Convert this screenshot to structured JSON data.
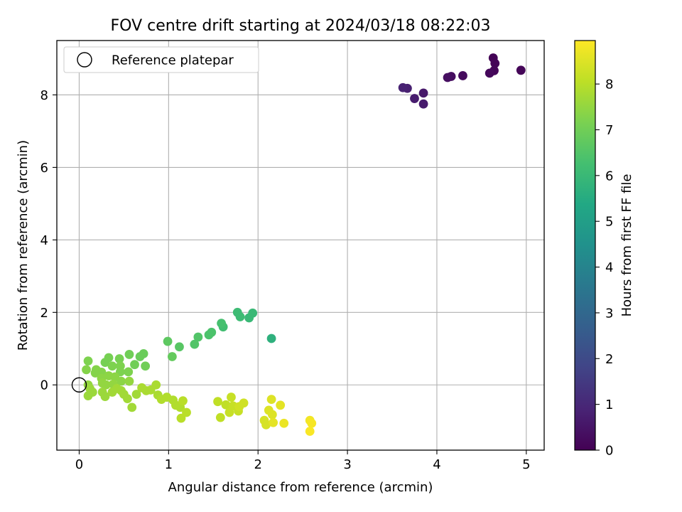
{
  "chart_data": {
    "type": "scatter",
    "title": "FOV centre drift starting at 2024/03/18 08:22:03",
    "xlabel": "Angular distance from reference (arcmin)",
    "ylabel": "Rotation from reference (arcmin)",
    "xlim": [
      -0.25,
      5.2
    ],
    "ylim": [
      -1.8,
      9.5
    ],
    "xticks": [
      0,
      1,
      2,
      3,
      4,
      5
    ],
    "yticks": [
      0,
      2,
      4,
      6,
      8
    ],
    "grid": true,
    "legend": {
      "location": "upper-left",
      "entries": [
        "Reference platepar"
      ]
    },
    "reference_point": {
      "x": 0,
      "y": 0,
      "label": "Reference platepar"
    },
    "colorbar": {
      "label": "Hours from first FF file",
      "colormap": "viridis",
      "range": [
        0,
        8.95
      ],
      "ticks": [
        0,
        1,
        2,
        3,
        4,
        5,
        6,
        7,
        8
      ]
    },
    "points": [
      {
        "x": 4.63,
        "y": 9.02,
        "t": 0.05
      },
      {
        "x": 4.65,
        "y": 8.87,
        "t": 0.08
      },
      {
        "x": 4.64,
        "y": 8.67,
        "t": 0.1
      },
      {
        "x": 4.94,
        "y": 8.68,
        "t": 0.12
      },
      {
        "x": 4.59,
        "y": 8.6,
        "t": 0.18
      },
      {
        "x": 4.29,
        "y": 8.53,
        "t": 0.25
      },
      {
        "x": 4.16,
        "y": 8.51,
        "t": 0.3
      },
      {
        "x": 4.12,
        "y": 8.48,
        "t": 0.35
      },
      {
        "x": 3.85,
        "y": 8.05,
        "t": 0.6
      },
      {
        "x": 3.85,
        "y": 7.75,
        "t": 0.65
      },
      {
        "x": 3.75,
        "y": 7.9,
        "t": 0.7
      },
      {
        "x": 3.67,
        "y": 8.18,
        "t": 0.8
      },
      {
        "x": 3.62,
        "y": 8.2,
        "t": 0.85
      },
      {
        "x": 2.15,
        "y": 1.28,
        "t": 5.7
      },
      {
        "x": 1.94,
        "y": 1.98,
        "t": 6.0
      },
      {
        "x": 1.9,
        "y": 1.85,
        "t": 6.0
      },
      {
        "x": 1.8,
        "y": 1.88,
        "t": 6.1
      },
      {
        "x": 1.77,
        "y": 2.0,
        "t": 6.1
      },
      {
        "x": 1.61,
        "y": 1.6,
        "t": 6.2
      },
      {
        "x": 1.59,
        "y": 1.7,
        "t": 6.3
      },
      {
        "x": 1.48,
        "y": 1.45,
        "t": 6.4
      },
      {
        "x": 1.45,
        "y": 1.38,
        "t": 6.4
      },
      {
        "x": 1.33,
        "y": 1.32,
        "t": 6.5
      },
      {
        "x": 1.29,
        "y": 1.12,
        "t": 6.5
      },
      {
        "x": 1.12,
        "y": 1.05,
        "t": 6.6
      },
      {
        "x": 0.99,
        "y": 1.2,
        "t": 6.7
      },
      {
        "x": 1.04,
        "y": 0.78,
        "t": 6.8
      },
      {
        "x": 0.72,
        "y": 0.86,
        "t": 6.9
      },
      {
        "x": 0.68,
        "y": 0.78,
        "t": 6.9
      },
      {
        "x": 0.56,
        "y": 0.84,
        "t": 7.0
      },
      {
        "x": 0.62,
        "y": 0.56,
        "t": 7.0
      },
      {
        "x": 0.74,
        "y": 0.52,
        "t": 7.0
      },
      {
        "x": 0.45,
        "y": 0.72,
        "t": 7.1
      },
      {
        "x": 0.33,
        "y": 0.75,
        "t": 7.1
      },
      {
        "x": 0.29,
        "y": 0.62,
        "t": 7.1
      },
      {
        "x": 0.37,
        "y": 0.52,
        "t": 7.2
      },
      {
        "x": 0.46,
        "y": 0.52,
        "t": 7.2
      },
      {
        "x": 0.55,
        "y": 0.36,
        "t": 7.2
      },
      {
        "x": 0.46,
        "y": 0.36,
        "t": 7.2
      },
      {
        "x": 0.1,
        "y": 0.66,
        "t": 7.2
      },
      {
        "x": 0.08,
        "y": 0.42,
        "t": 7.3
      },
      {
        "x": 0.19,
        "y": 0.42,
        "t": 7.3
      },
      {
        "x": 0.25,
        "y": 0.35,
        "t": 7.3
      },
      {
        "x": 0.18,
        "y": 0.33,
        "t": 7.3
      },
      {
        "x": 0.25,
        "y": 0.18,
        "t": 7.4
      },
      {
        "x": 0.33,
        "y": 0.25,
        "t": 7.4
      },
      {
        "x": 0.4,
        "y": 0.22,
        "t": 7.4
      },
      {
        "x": 0.47,
        "y": 0.1,
        "t": 7.4
      },
      {
        "x": 0.56,
        "y": 0.1,
        "t": 7.5
      },
      {
        "x": 0.26,
        "y": 0.05,
        "t": 7.5
      },
      {
        "x": 0.3,
        "y": 0.0,
        "t": 7.5
      },
      {
        "x": 0.38,
        "y": 0.02,
        "t": 7.5
      },
      {
        "x": 0.1,
        "y": 0.0,
        "t": 7.5
      },
      {
        "x": 0.12,
        "y": -0.1,
        "t": 7.6
      },
      {
        "x": 0.15,
        "y": -0.2,
        "t": 7.6
      },
      {
        "x": 0.1,
        "y": -0.3,
        "t": 7.6
      },
      {
        "x": 0.26,
        "y": -0.2,
        "t": 7.6
      },
      {
        "x": 0.29,
        "y": -0.32,
        "t": 7.6
      },
      {
        "x": 0.37,
        "y": -0.2,
        "t": 7.7
      },
      {
        "x": 0.42,
        "y": -0.1,
        "t": 7.7
      },
      {
        "x": 0.47,
        "y": -0.16,
        "t": 7.7
      },
      {
        "x": 0.5,
        "y": -0.26,
        "t": 7.7
      },
      {
        "x": 0.54,
        "y": -0.38,
        "t": 7.7
      },
      {
        "x": 0.59,
        "y": -0.62,
        "t": 7.7
      },
      {
        "x": 0.64,
        "y": -0.26,
        "t": 7.7
      },
      {
        "x": 0.7,
        "y": -0.08,
        "t": 7.8
      },
      {
        "x": 0.75,
        "y": -0.16,
        "t": 7.8
      },
      {
        "x": 0.8,
        "y": -0.14,
        "t": 7.8
      },
      {
        "x": 0.86,
        "y": 0.0,
        "t": 7.8
      },
      {
        "x": 0.88,
        "y": -0.28,
        "t": 7.8
      },
      {
        "x": 0.92,
        "y": -0.4,
        "t": 7.9
      },
      {
        "x": 0.98,
        "y": -0.34,
        "t": 7.9
      },
      {
        "x": 1.05,
        "y": -0.42,
        "t": 7.9
      },
      {
        "x": 1.08,
        "y": -0.56,
        "t": 7.9
      },
      {
        "x": 1.13,
        "y": -0.62,
        "t": 7.9
      },
      {
        "x": 1.16,
        "y": -0.44,
        "t": 8.0
      },
      {
        "x": 1.14,
        "y": -0.92,
        "t": 8.0
      },
      {
        "x": 1.2,
        "y": -0.76,
        "t": 8.0
      },
      {
        "x": 1.55,
        "y": -0.46,
        "t": 8.1
      },
      {
        "x": 1.58,
        "y": -0.9,
        "t": 8.1
      },
      {
        "x": 1.64,
        "y": -0.55,
        "t": 8.1
      },
      {
        "x": 1.68,
        "y": -0.76,
        "t": 8.2
      },
      {
        "x": 1.7,
        "y": -0.34,
        "t": 8.2
      },
      {
        "x": 1.72,
        "y": -0.58,
        "t": 8.2
      },
      {
        "x": 1.78,
        "y": -0.72,
        "t": 8.2
      },
      {
        "x": 1.79,
        "y": -0.6,
        "t": 8.3
      },
      {
        "x": 1.84,
        "y": -0.5,
        "t": 8.3
      },
      {
        "x": 2.07,
        "y": -0.98,
        "t": 8.4
      },
      {
        "x": 2.09,
        "y": -1.1,
        "t": 8.4
      },
      {
        "x": 2.12,
        "y": -0.7,
        "t": 8.5
      },
      {
        "x": 2.15,
        "y": -0.4,
        "t": 8.5
      },
      {
        "x": 2.16,
        "y": -0.82,
        "t": 8.5
      },
      {
        "x": 2.17,
        "y": -1.04,
        "t": 8.6
      },
      {
        "x": 2.25,
        "y": -0.56,
        "t": 8.6
      },
      {
        "x": 2.29,
        "y": -1.06,
        "t": 8.7
      },
      {
        "x": 2.58,
        "y": -0.98,
        "t": 8.8
      },
      {
        "x": 2.6,
        "y": -1.06,
        "t": 8.85
      },
      {
        "x": 2.58,
        "y": -1.28,
        "t": 8.9
      }
    ]
  }
}
